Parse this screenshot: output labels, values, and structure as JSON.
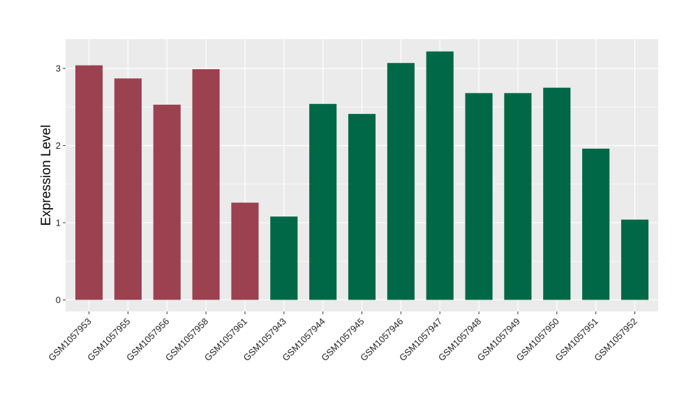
{
  "chart_data": {
    "type": "bar",
    "title": "",
    "xlabel": "",
    "ylabel": "Expression Level",
    "categories": [
      "GSM1057953",
      "GSM1057955",
      "GSM1057956",
      "GSM1057958",
      "GSM1057961",
      "GSM1057943",
      "GSM1057944",
      "GSM1057945",
      "GSM1057946",
      "GSM1057947",
      "GSM1057948",
      "GSM1057949",
      "GSM1057950",
      "GSM1057951",
      "GSM1057952"
    ],
    "values": [
      3.04,
      2.87,
      2.53,
      2.99,
      1.26,
      1.08,
      2.54,
      2.41,
      3.07,
      3.22,
      2.68,
      2.68,
      2.75,
      1.96,
      1.04
    ],
    "groups": [
      "a",
      "a",
      "a",
      "a",
      "a",
      "b",
      "b",
      "b",
      "b",
      "b",
      "b",
      "b",
      "b",
      "b",
      "b"
    ],
    "group_colors": {
      "a": "#9b4150",
      "b": "#006846"
    },
    "yticks": [
      0,
      1,
      2,
      3
    ],
    "ylim": [
      -0.15,
      3.38
    ],
    "grid": true,
    "legend": "none",
    "panel_background": "#ebebeb",
    "gridline_color": "#ffffff"
  }
}
